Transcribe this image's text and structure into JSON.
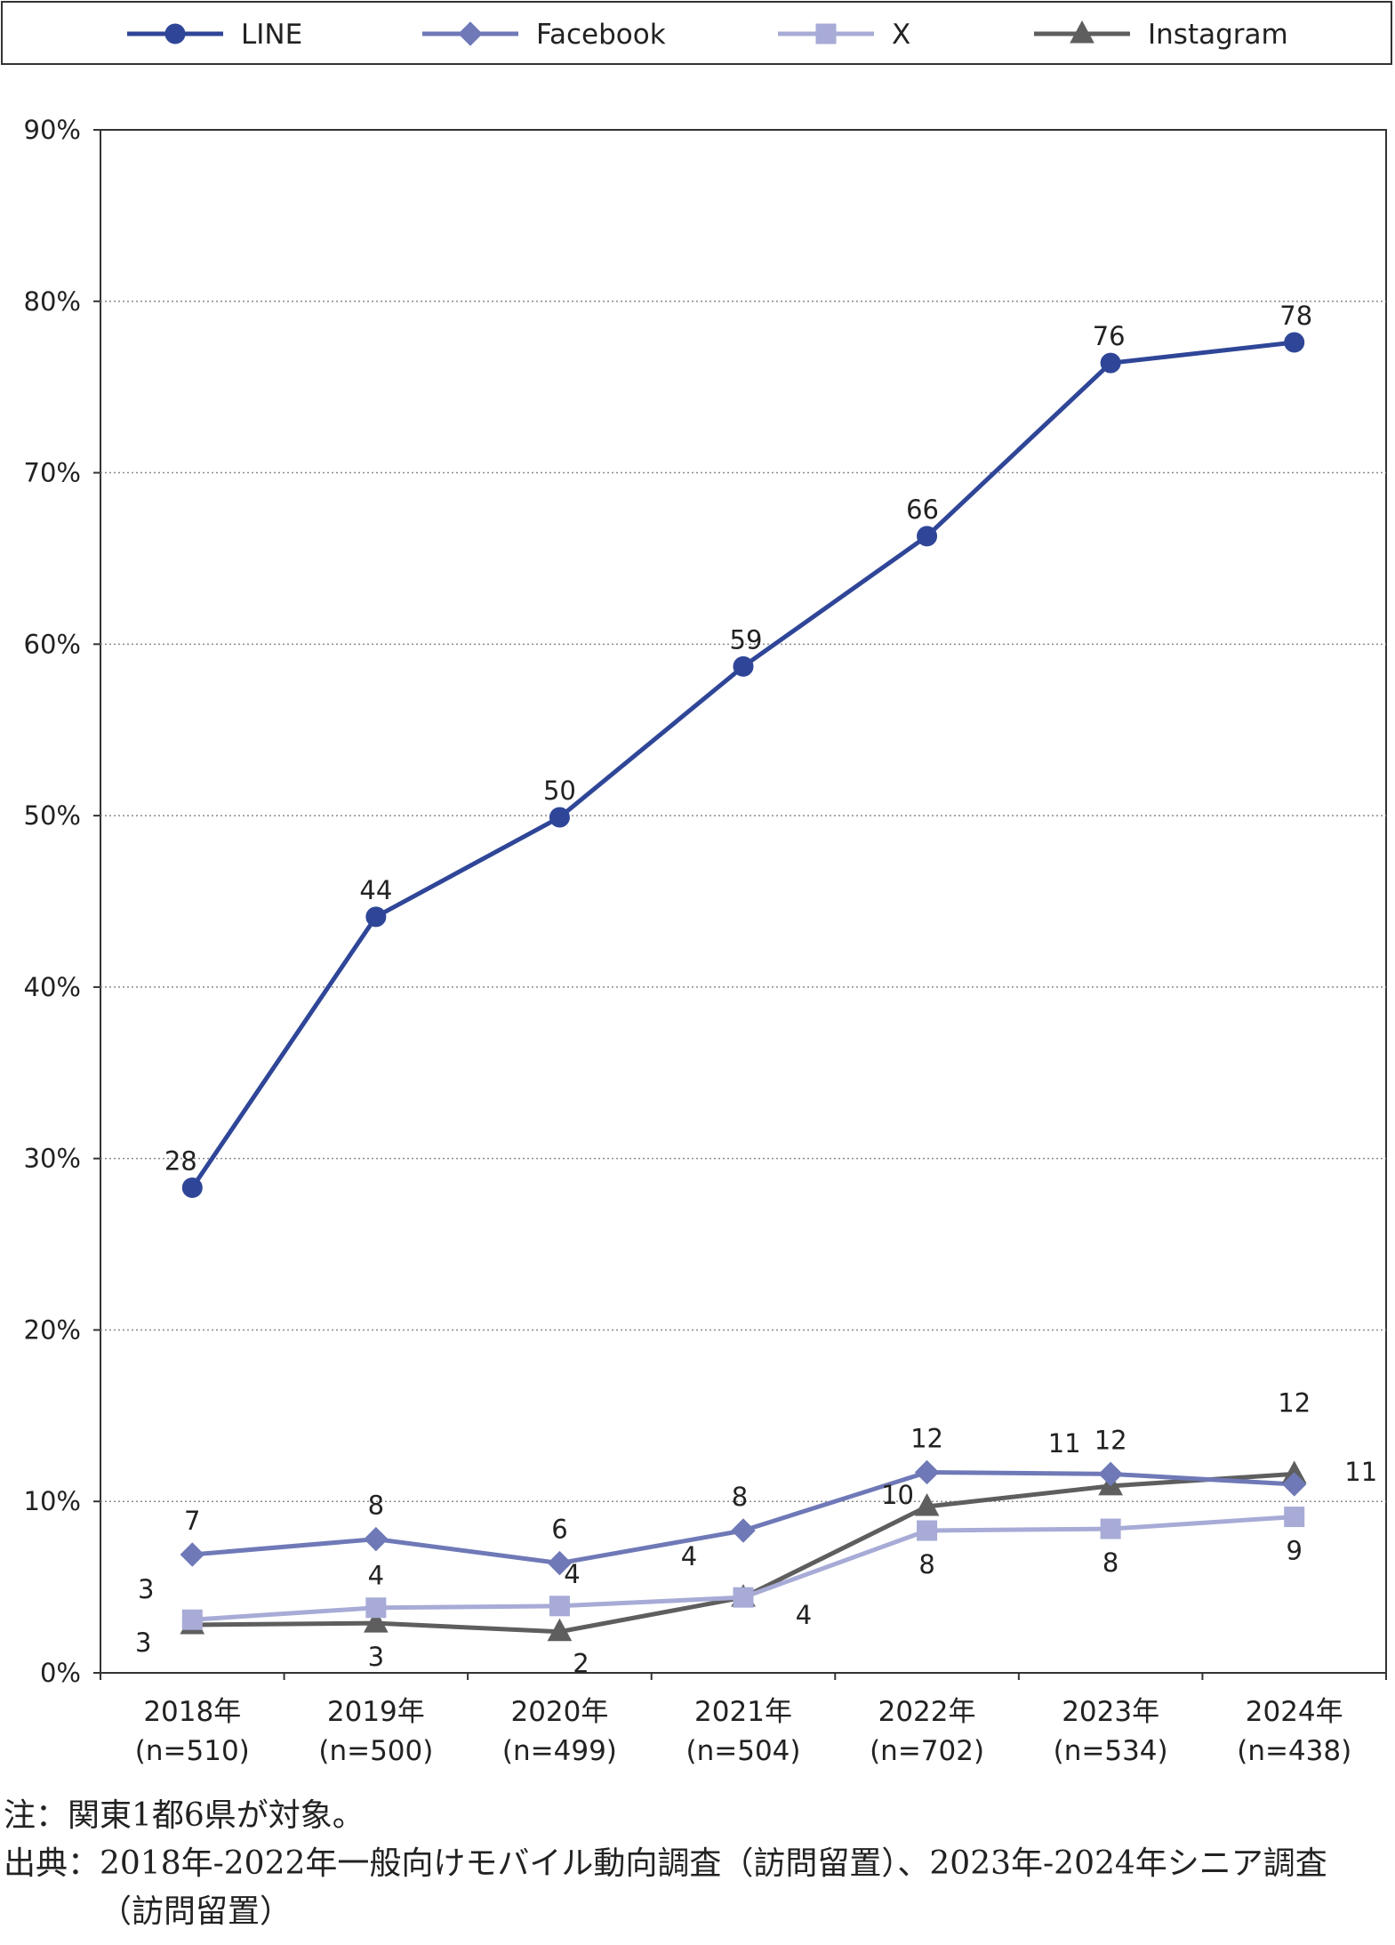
{
  "chart_data": {
    "type": "line",
    "categories": [
      "2018年",
      "2019年",
      "2020年",
      "2021年",
      "2022年",
      "2023年",
      "2024年"
    ],
    "category_sublabels": [
      "(n=510)",
      "(n=500)",
      "(n=499)",
      "(n=504)",
      "(n=702)",
      "(n=534)",
      "(n=438)"
    ],
    "y_ticks": [
      "0%",
      "10%",
      "20%",
      "30%",
      "40%",
      "50%",
      "60%",
      "70%",
      "80%",
      "90%"
    ],
    "ylim": [
      0,
      90
    ],
    "grid": true,
    "legend_position": "top",
    "series": [
      {
        "name": "LINE",
        "marker": "circle",
        "color": "#2f4698",
        "values": [
          28.3,
          44.1,
          49.9,
          58.7,
          66.3,
          76.4,
          77.6
        ],
        "labels": [
          "28",
          "44",
          "50",
          "59",
          "66",
          "76",
          "78"
        ]
      },
      {
        "name": "Facebook",
        "marker": "diamond",
        "color": "#6f79b7",
        "values": [
          6.9,
          7.8,
          6.4,
          8.3,
          11.7,
          11.6,
          11.0
        ],
        "labels": [
          "7",
          "8",
          "6",
          "8",
          "12",
          "12",
          "11"
        ]
      },
      {
        "name": "X",
        "marker": "square",
        "color": "#a7abd6",
        "values": [
          3.1,
          3.8,
          3.9,
          4.4,
          8.3,
          8.4,
          9.1
        ],
        "labels": [
          "3",
          "4",
          "4",
          "4",
          "8",
          "8",
          "9"
        ]
      },
      {
        "name": "Instagram",
        "marker": "triangle",
        "color": "#5e5e5e",
        "values": [
          2.8,
          2.9,
          2.4,
          4.4,
          9.7,
          10.9,
          11.6
        ],
        "labels": [
          "3",
          "3",
          "2",
          "4",
          "10",
          "11",
          "12"
        ]
      }
    ]
  },
  "notes": {
    "line1": "注：関東1都6県が対象。",
    "line2": "出典：2018年-2022年一般向けモバイル動向調査（訪問留置）、2023年-2024年シニア調査",
    "line3": "（訪問留置）"
  }
}
